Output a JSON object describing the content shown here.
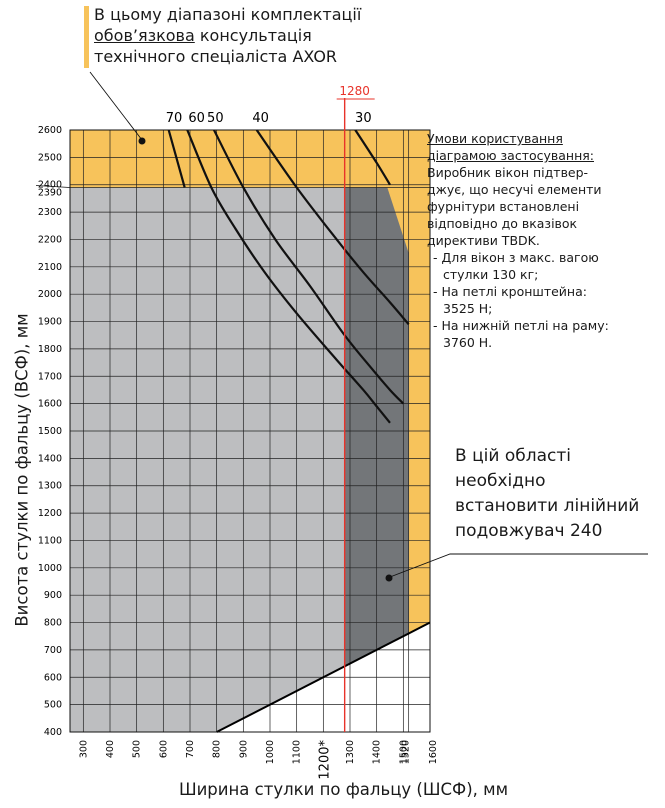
{
  "top_note": {
    "line1": "В цьому діапазоні комплектації",
    "line2_underlined": "обов’язкова",
    "line2_rest": " консультація",
    "line3": "технічного спеціаліста AXOR"
  },
  "conditions": {
    "heading_1": "Умови користування",
    "heading_2": "діаграмою застосування:",
    "body": [
      "Виробник вікон підтвер-",
      "джує, що несучі елементи",
      "фурнітури встановлені",
      "відповідно до вказівок",
      "директиви TBDK."
    ],
    "items": [
      [
        "Для вікон з макс. вагою",
        "стулки 130 кг;"
      ],
      [
        "На петлі кронштейна:",
        "3525 Н;"
      ],
      [
        "На нижній петлі на раму:",
        "3760 Н."
      ]
    ]
  },
  "area_note": {
    "lines": [
      "В цій області",
      "необхідно",
      "встановити лінійний",
      "подовжувач 240"
    ]
  },
  "colors": {
    "orange": "#f7c35b",
    "light_gray": "#bdbec0",
    "dark_gray": "#737679",
    "red": "#e8332a",
    "line": "#111111"
  },
  "chart_data": {
    "type": "line",
    "xlabel": "Ширина стулки по фальцу (ШСФ), мм",
    "ylabel": "Висота стулки по фальцу (ВСФ), мм",
    "xlim": [
      250,
      1600
    ],
    "ylim": [
      400,
      2600
    ],
    "x_ticks": [
      300,
      400,
      500,
      600,
      700,
      800,
      900,
      1000,
      1100,
      1200,
      1300,
      1400,
      1500,
      1600
    ],
    "x_tick_labels": [
      "300",
      "400",
      "500",
      "600",
      "700",
      "800",
      "900",
      "1000",
      "1100",
      "1200*",
      "1300",
      "1400",
      "1500",
      "1600"
    ],
    "x_tick_extra": {
      "value": 1520,
      "label": "1520"
    },
    "y_ticks": [
      400,
      500,
      600,
      700,
      800,
      900,
      1000,
      1100,
      1200,
      1300,
      1400,
      1500,
      1600,
      1700,
      1800,
      1900,
      2000,
      2100,
      2200,
      2300,
      2400,
      2500,
      2600
    ],
    "y_tick_labels": [
      "400",
      "500",
      "600",
      "700",
      "800",
      "900",
      "1000",
      "1100",
      "1200",
      "1300",
      "1400",
      "1500",
      "1600",
      "1700",
      "1800",
      "1900",
      "2000",
      "2100",
      "2200",
      "2300",
      "2400",
      "2500",
      "2600"
    ],
    "y_tick_extra": {
      "value": 2390,
      "label": "2390"
    },
    "grid": true,
    "zones": {
      "mandatory_consultation_min_height": 2390,
      "extension_required_min_width": 1280,
      "usable_area": [
        [
          250,
          400
        ],
        [
          800,
          400
        ],
        [
          1600,
          800
        ],
        [
          1600,
          2600
        ],
        [
          250,
          2600
        ]
      ],
      "light_gray_area": [
        [
          250,
          400
        ],
        [
          800,
          400
        ],
        [
          1280,
          640
        ],
        [
          1280,
          2390
        ],
        [
          250,
          2390
        ]
      ],
      "dark_gray_area": [
        [
          1280,
          640
        ],
        [
          1520,
          760
        ],
        [
          1520,
          2150
        ],
        [
          1440,
          2390
        ],
        [
          1280,
          2390
        ]
      ]
    },
    "reference_line": {
      "x": 1280,
      "label": "1280"
    },
    "series": [
      {
        "name": "70",
        "points": [
          [
            620,
            2600
          ],
          [
            680,
            2390
          ]
        ]
      },
      {
        "name": "60",
        "points": [
          [
            690,
            2600
          ],
          [
            780,
            2390
          ],
          [
            870,
            2240
          ],
          [
            980,
            2080
          ],
          [
            1100,
            1930
          ],
          [
            1250,
            1760
          ],
          [
            1350,
            1650
          ],
          [
            1400,
            1590
          ],
          [
            1450,
            1530
          ]
        ]
      },
      {
        "name": "50",
        "points": [
          [
            790,
            2600
          ],
          [
            900,
            2390
          ],
          [
            1020,
            2200
          ],
          [
            1150,
            2030
          ],
          [
            1280,
            1850
          ],
          [
            1380,
            1730
          ],
          [
            1450,
            1650
          ],
          [
            1500,
            1600
          ]
        ]
      },
      {
        "name": "40",
        "points": [
          [
            950,
            2600
          ],
          [
            1100,
            2390
          ],
          [
            1250,
            2200
          ],
          [
            1350,
            2080
          ],
          [
            1450,
            1970
          ],
          [
            1520,
            1890
          ]
        ]
      },
      {
        "name": "30",
        "points": [
          [
            1320,
            2600
          ],
          [
            1400,
            2480
          ],
          [
            1450,
            2400
          ]
        ]
      }
    ],
    "series_label_x": [
      640,
      725,
      795,
      965,
      1350
    ]
  }
}
